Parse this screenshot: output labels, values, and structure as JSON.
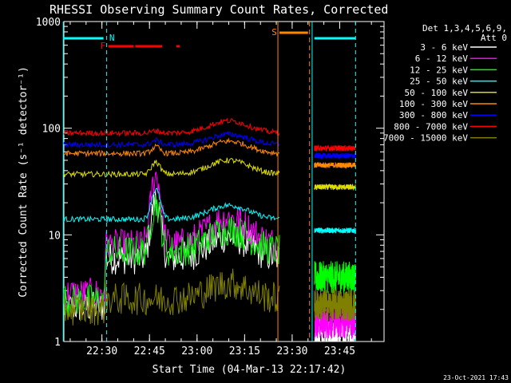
{
  "chart_data": {
    "type": "line",
    "title": "RHESSI Observing Summary Count Rates, Corrected",
    "xlabel": "Start Time (04-Mar-13 22:17:42)",
    "ylabel": "Corrected Count Rate (s⁻¹ detector⁻¹)",
    "y_scale": "log",
    "ylim": [
      1,
      1000
    ],
    "xlim_minutes": [
      22.3,
      23.983
    ],
    "xlim_minutes_note": "hours as decimal",
    "x_ticks": [
      "22:30",
      "22:45",
      "23:00",
      "23:15",
      "23:30",
      "23:45"
    ],
    "y_ticks": [
      "1",
      "10",
      "100",
      "1000"
    ],
    "legend_header": [
      "Det 1,3,4,5,6,9,",
      "Att 0"
    ],
    "legend_position": "top-right",
    "timestamp": "23-Oct-2021 17:43",
    "flags": {
      "N": "N",
      "F": "F",
      "S": "S"
    },
    "series": [
      {
        "name": "3 - 6 keV",
        "color": "#ffffff",
        "level_before": 6,
        "level_after": 1.2
      },
      {
        "name": "6 - 12 keV",
        "color": "#ff00ff",
        "level_before": 8,
        "level_after": 1.5
      },
      {
        "name": "12 - 25 keV",
        "color": "#00ff00",
        "level_before": 7,
        "level_after": 4
      },
      {
        "name": "25 - 50 keV",
        "color": "#00ffff",
        "level_before": 14,
        "level_after": 11
      },
      {
        "name": "50 - 100 keV",
        "color": "#dddd00",
        "level_before": 37,
        "level_after": 28
      },
      {
        "name": "100 - 300 keV",
        "color": "#ff8800",
        "level_before": 58,
        "level_after": 45
      },
      {
        "name": "300 - 800 keV",
        "color": "#0000ff",
        "level_before": 70,
        "level_after": 55
      },
      {
        "name": "800 - 7000 keV",
        "color": "#ff0000",
        "level_before": 90,
        "level_after": 65
      },
      {
        "name": "7000 - 15000 keV",
        "color": "#808000",
        "level_before": 2.5,
        "level_after": 2.2
      }
    ]
  }
}
